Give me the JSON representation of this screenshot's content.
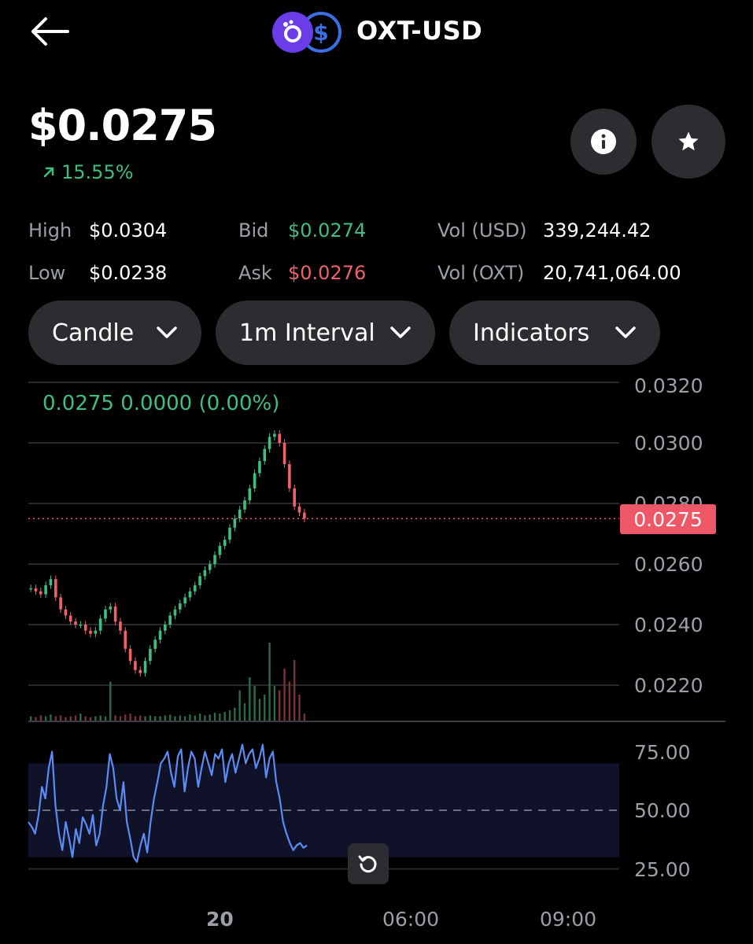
{
  "header": {
    "title": "OXT-USD",
    "icons": [
      "back-arrow-icon",
      "orchid-token-icon",
      "usd-coin-icon"
    ]
  },
  "ticker": {
    "price": "$0.0275",
    "change": "15.55%",
    "change_direction": "up",
    "up_color": "#3fbf7f",
    "down_color": "#f0616d"
  },
  "stats": {
    "high_label": "High",
    "high": "$0.0304",
    "low_label": "Low",
    "low": "$0.0238",
    "bid_label": "Bid",
    "bid": "$0.0274",
    "ask_label": "Ask",
    "ask": "$0.0276",
    "vol_usd_label": "Vol (USD)",
    "vol_usd": "339,244.42",
    "vol_oxt_label": "Vol (OXT)",
    "vol_oxt": "20,741,064.00"
  },
  "controls": {
    "chart_type": "Candle",
    "interval": "1m Interval",
    "indicators": "Indicators"
  },
  "chart_data": [
    {
      "type": "candlestick",
      "ohlc_readout": "0.0275  0.0000 (0.00%)",
      "last_price_label": "0.0275",
      "last_price": 0.0275,
      "ylim": [
        0.021,
        0.032
      ],
      "y_ticks": [
        "0.0320",
        "0.0300",
        "0.0280",
        "0.0260",
        "0.0240",
        "0.0220"
      ],
      "y_tick_values": [
        0.032,
        0.03,
        0.028,
        0.026,
        0.024,
        0.022
      ],
      "price_path": [
        0.0252,
        0.0251,
        0.025,
        0.0253,
        0.0255,
        0.0249,
        0.0245,
        0.0243,
        0.0241,
        0.024,
        0.024,
        0.0238,
        0.0237,
        0.0238,
        0.0242,
        0.0245,
        0.0246,
        0.0241,
        0.0238,
        0.0232,
        0.0228,
        0.0225,
        0.0224,
        0.0228,
        0.0232,
        0.0235,
        0.0238,
        0.024,
        0.0243,
        0.0245,
        0.0247,
        0.0249,
        0.0251,
        0.0253,
        0.0256,
        0.0258,
        0.026,
        0.0263,
        0.0266,
        0.0268,
        0.0272,
        0.0275,
        0.0278,
        0.0281,
        0.0285,
        0.029,
        0.0294,
        0.0298,
        0.0302,
        0.0303,
        0.03,
        0.0293,
        0.0285,
        0.0279,
        0.0277,
        0.0275
      ],
      "volume": [
        0.05,
        0.04,
        0.06,
        0.05,
        0.07,
        0.05,
        0.06,
        0.04,
        0.05,
        0.06,
        0.08,
        0.05,
        0.04,
        0.05,
        0.06,
        0.05,
        0.45,
        0.06,
        0.05,
        0.07,
        0.08,
        0.05,
        0.06,
        0.05,
        0.06,
        0.05,
        0.05,
        0.06,
        0.07,
        0.05,
        0.06,
        0.05,
        0.07,
        0.06,
        0.08,
        0.06,
        0.07,
        0.09,
        0.08,
        0.1,
        0.12,
        0.15,
        0.35,
        0.2,
        0.5,
        0.4,
        0.25,
        0.3,
        0.9,
        0.4,
        0.35,
        0.6,
        0.45,
        0.7,
        0.3,
        0.08
      ]
    },
    {
      "type": "line",
      "indicator": "RSI",
      "ylim": [
        20,
        82
      ],
      "y_ticks": [
        "75.00",
        "50.00",
        "25.00"
      ],
      "y_tick_values": [
        75,
        50,
        25
      ],
      "band": [
        30,
        70
      ],
      "midline": 50,
      "values": [
        45,
        43,
        40,
        48,
        60,
        55,
        68,
        75,
        52,
        40,
        33,
        45,
        38,
        30,
        42,
        36,
        47,
        44,
        40,
        48,
        35,
        40,
        52,
        60,
        74,
        68,
        55,
        50,
        62,
        45,
        38,
        30,
        28,
        35,
        40,
        32,
        45,
        55,
        62,
        70,
        72,
        75,
        66,
        60,
        73,
        76,
        58,
        68,
        75,
        72,
        60,
        68,
        75,
        70,
        65,
        74,
        72,
        76,
        62,
        70,
        74,
        66,
        72,
        78,
        70,
        74,
        76,
        68,
        72,
        78,
        64,
        72,
        75,
        62,
        55,
        45,
        40,
        36,
        33,
        35,
        36,
        34,
        35
      ]
    }
  ],
  "x_axis": {
    "labels": [
      "20",
      "06:00",
      "09:00"
    ]
  }
}
